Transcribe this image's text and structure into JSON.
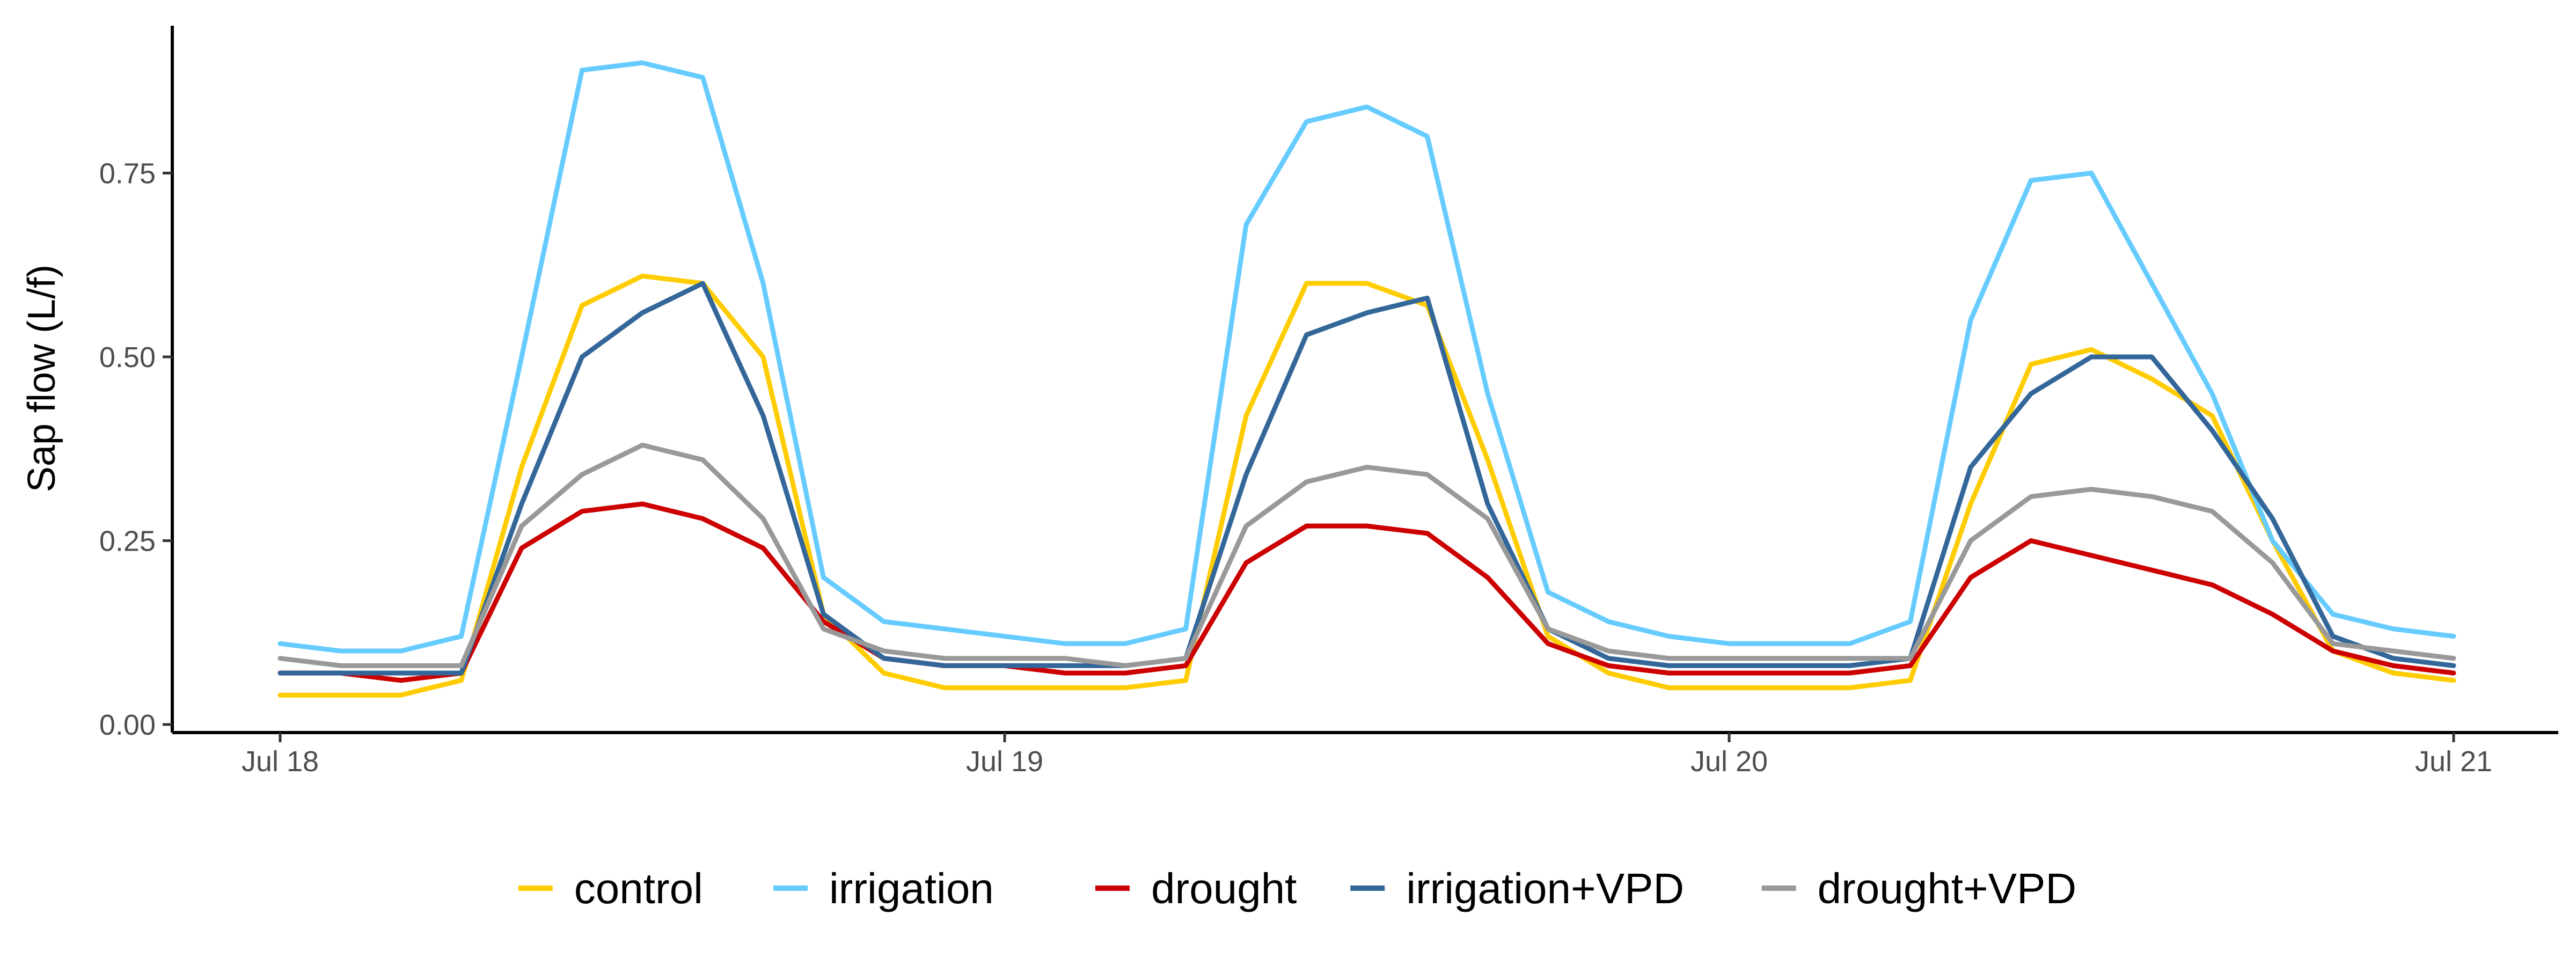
{
  "chart_data": {
    "type": "line",
    "title": "",
    "xlabel": "",
    "ylabel": "Sap flow (L/f)",
    "x_ticks": [
      "Jul 18",
      "Jul 19",
      "Jul 20",
      "Jul 21"
    ],
    "x_range": [
      "Jul 18 00:00",
      "Jul 21 00:00"
    ],
    "y_ticks": [
      "0.00",
      "0.25",
      "0.50",
      "0.75"
    ],
    "ylim": [
      0,
      0.92
    ],
    "grid": false,
    "legend_position": "bottom",
    "x": [
      "Jul 18 00:00",
      "Jul 18 02:00",
      "Jul 18 04:00",
      "Jul 18 06:00",
      "Jul 18 08:00",
      "Jul 18 10:00",
      "Jul 18 12:00",
      "Jul 18 14:00",
      "Jul 18 16:00",
      "Jul 18 18:00",
      "Jul 18 20:00",
      "Jul 18 22:00",
      "Jul 19 00:00",
      "Jul 19 02:00",
      "Jul 19 04:00",
      "Jul 19 06:00",
      "Jul 19 08:00",
      "Jul 19 10:00",
      "Jul 19 12:00",
      "Jul 19 14:00",
      "Jul 19 16:00",
      "Jul 19 18:00",
      "Jul 19 20:00",
      "Jul 19 22:00",
      "Jul 20 00:00",
      "Jul 20 02:00",
      "Jul 20 04:00",
      "Jul 20 06:00",
      "Jul 20 08:00",
      "Jul 20 10:00",
      "Jul 20 12:00",
      "Jul 20 14:00",
      "Jul 20 16:00",
      "Jul 20 18:00",
      "Jul 20 20:00",
      "Jul 20 22:00",
      "Jul 21 00:00"
    ],
    "series": [
      {
        "name": "control",
        "color": "#FFCC00",
        "values": [
          0.04,
          0.04,
          0.04,
          0.06,
          0.35,
          0.57,
          0.61,
          0.6,
          0.5,
          0.15,
          0.07,
          0.05,
          0.05,
          0.05,
          0.05,
          0.06,
          0.42,
          0.6,
          0.6,
          0.57,
          0.36,
          0.12,
          0.07,
          0.05,
          0.05,
          0.05,
          0.05,
          0.06,
          0.3,
          0.49,
          0.51,
          0.47,
          0.42,
          0.25,
          0.1,
          0.07,
          0.06
        ]
      },
      {
        "name": "irrigation",
        "color": "#66CCFF",
        "values": [
          0.11,
          0.1,
          0.1,
          0.12,
          0.5,
          0.89,
          0.9,
          0.88,
          0.6,
          0.2,
          0.14,
          0.13,
          0.12,
          0.11,
          0.11,
          0.13,
          0.68,
          0.82,
          0.84,
          0.8,
          0.45,
          0.18,
          0.14,
          0.12,
          0.11,
          0.11,
          0.11,
          0.14,
          0.55,
          0.74,
          0.75,
          0.6,
          0.45,
          0.25,
          0.15,
          0.13,
          0.12
        ]
      },
      {
        "name": "drought",
        "color": "#CC0000",
        "values": [
          0.07,
          0.07,
          0.06,
          0.07,
          0.24,
          0.29,
          0.3,
          0.28,
          0.24,
          0.14,
          0.09,
          0.08,
          0.08,
          0.07,
          0.07,
          0.08,
          0.22,
          0.27,
          0.27,
          0.26,
          0.2,
          0.11,
          0.08,
          0.07,
          0.07,
          0.07,
          0.07,
          0.08,
          0.2,
          0.25,
          0.23,
          0.21,
          0.19,
          0.15,
          0.1,
          0.08,
          0.07
        ]
      },
      {
        "name": "irrigation+VPD",
        "color": "#336699",
        "values": [
          0.07,
          0.07,
          0.07,
          0.07,
          0.3,
          0.5,
          0.56,
          0.6,
          0.42,
          0.15,
          0.09,
          0.08,
          0.08,
          0.08,
          0.08,
          0.09,
          0.34,
          0.53,
          0.56,
          0.58,
          0.3,
          0.13,
          0.09,
          0.08,
          0.08,
          0.08,
          0.08,
          0.09,
          0.35,
          0.45,
          0.5,
          0.5,
          0.4,
          0.28,
          0.12,
          0.09,
          0.08
        ]
      },
      {
        "name": "drought+VPD",
        "color": "#999999",
        "values": [
          0.09,
          0.08,
          0.08,
          0.08,
          0.27,
          0.34,
          0.38,
          0.36,
          0.28,
          0.13,
          0.1,
          0.09,
          0.09,
          0.09,
          0.08,
          0.09,
          0.27,
          0.33,
          0.35,
          0.34,
          0.28,
          0.13,
          0.1,
          0.09,
          0.09,
          0.09,
          0.09,
          0.09,
          0.25,
          0.31,
          0.32,
          0.31,
          0.29,
          0.22,
          0.11,
          0.1,
          0.09
        ]
      }
    ]
  }
}
